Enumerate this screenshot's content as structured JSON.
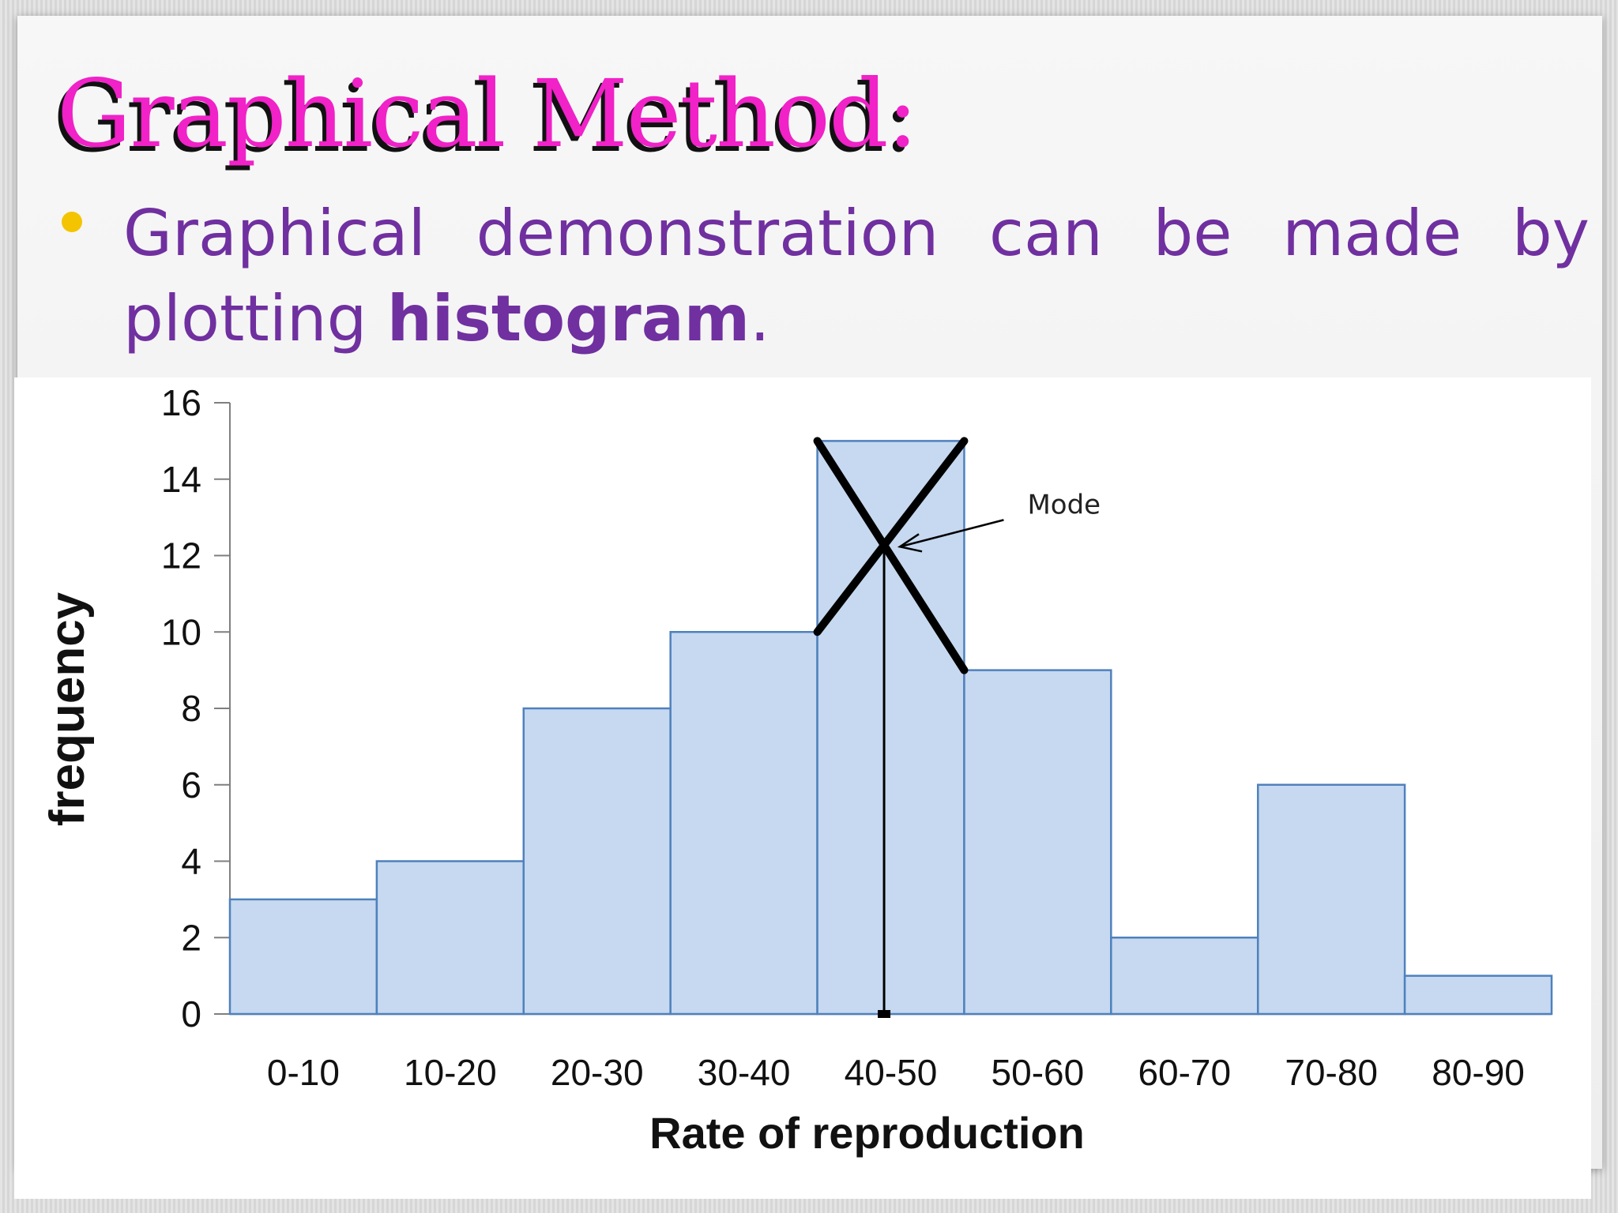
{
  "slide": {
    "title": "Graphical Method:",
    "bullet": {
      "text_before": "Graphical demonstration can be made by plotting ",
      "bold_word": "histogram",
      "text_after": ".",
      "text_color": "#7030a0",
      "bullet_color": "#f4c400"
    },
    "title_color": "#f022c8"
  },
  "chart_data": {
    "type": "bar",
    "categories": [
      "0-10",
      "10-20",
      "20-30",
      "30-40",
      "40-50",
      "50-60",
      "60-70",
      "70-80",
      "80-90"
    ],
    "values": [
      3,
      4,
      8,
      10,
      15,
      9,
      2,
      6,
      1
    ],
    "xlabel": "Rate of reproduction",
    "ylabel": "frequency",
    "ylim": [
      0,
      16
    ],
    "yticks": [
      0,
      2,
      4,
      6,
      8,
      10,
      12,
      14,
      16
    ],
    "grid": false,
    "bar_color": "#c6d9f0",
    "bar_edge_color": "#4f81bd",
    "annotation": {
      "text": "Mode",
      "mode_value": 12.3,
      "modal_class": "40-50"
    }
  }
}
